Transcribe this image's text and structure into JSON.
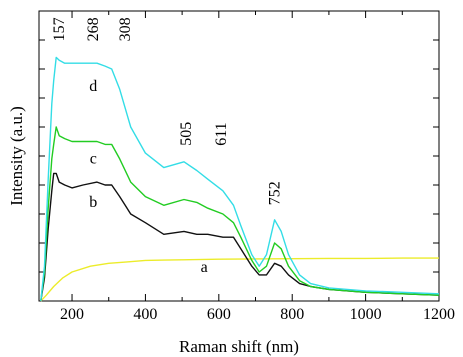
{
  "chart_data": {
    "type": "line",
    "title": "",
    "xlabel": "Raman shift (nm)",
    "ylabel": "Intensity (a.u.)",
    "xlim": [
      110,
      1200
    ],
    "ylim": [
      0,
      1.0
    ],
    "y_tick_labels_shown": false,
    "x_ticks": [
      200,
      400,
      600,
      800,
      1000,
      1200
    ],
    "x_minor_ticks": [
      300,
      500,
      700,
      900,
      1100
    ],
    "y_ticks": [
      0.1,
      0.2,
      0.3,
      0.4,
      0.5,
      0.6,
      0.7,
      0.8,
      0.9
    ],
    "grid": false,
    "legend": "none",
    "series": [
      {
        "name": "a",
        "color": "#ecec2a",
        "x": [
          115,
          130,
          150,
          175,
          200,
          250,
          300,
          350,
          400,
          450,
          500,
          600,
          700,
          800,
          900,
          1000,
          1100,
          1200
        ],
        "y": [
          0.0,
          0.02,
          0.05,
          0.08,
          0.1,
          0.12,
          0.13,
          0.135,
          0.14,
          0.141,
          0.142,
          0.144,
          0.145,
          0.146,
          0.147,
          0.147,
          0.148,
          0.148
        ]
      },
      {
        "name": "b",
        "color": "#111111",
        "x": [
          115,
          125,
          135,
          145,
          150,
          157,
          165,
          180,
          200,
          230,
          268,
          290,
          308,
          330,
          360,
          400,
          450,
          505,
          540,
          570,
          611,
          640,
          660,
          690,
          710,
          730,
          752,
          770,
          790,
          820,
          850,
          900,
          1000,
          1100,
          1200
        ],
        "y": [
          0.0,
          0.08,
          0.25,
          0.38,
          0.44,
          0.44,
          0.41,
          0.4,
          0.39,
          0.4,
          0.41,
          0.4,
          0.4,
          0.36,
          0.3,
          0.27,
          0.23,
          0.24,
          0.23,
          0.23,
          0.22,
          0.22,
          0.18,
          0.12,
          0.09,
          0.09,
          0.13,
          0.12,
          0.09,
          0.06,
          0.05,
          0.04,
          0.03,
          0.025,
          0.02
        ]
      },
      {
        "name": "c",
        "color": "#22cc22",
        "x": [
          115,
          125,
          135,
          145,
          150,
          157,
          165,
          180,
          200,
          230,
          268,
          290,
          308,
          330,
          360,
          400,
          450,
          505,
          540,
          570,
          611,
          640,
          660,
          690,
          710,
          730,
          752,
          770,
          790,
          820,
          850,
          900,
          1000,
          1100,
          1200
        ],
        "y": [
          0.0,
          0.1,
          0.32,
          0.49,
          0.54,
          0.6,
          0.57,
          0.56,
          0.55,
          0.55,
          0.55,
          0.54,
          0.54,
          0.49,
          0.41,
          0.36,
          0.33,
          0.35,
          0.34,
          0.32,
          0.3,
          0.27,
          0.22,
          0.14,
          0.1,
          0.12,
          0.2,
          0.18,
          0.12,
          0.07,
          0.05,
          0.04,
          0.03,
          0.025,
          0.02
        ]
      },
      {
        "name": "d",
        "color": "#33dde6",
        "x": [
          115,
          125,
          135,
          145,
          150,
          157,
          165,
          180,
          200,
          230,
          268,
          290,
          308,
          330,
          360,
          400,
          450,
          505,
          540,
          570,
          611,
          640,
          660,
          690,
          710,
          730,
          752,
          770,
          790,
          820,
          850,
          900,
          1000,
          1100,
          1200
        ],
        "y": [
          0.0,
          0.12,
          0.42,
          0.68,
          0.76,
          0.84,
          0.83,
          0.82,
          0.82,
          0.82,
          0.82,
          0.81,
          0.8,
          0.73,
          0.6,
          0.51,
          0.46,
          0.48,
          0.45,
          0.42,
          0.38,
          0.33,
          0.26,
          0.16,
          0.12,
          0.16,
          0.28,
          0.24,
          0.16,
          0.09,
          0.06,
          0.045,
          0.035,
          0.03,
          0.025
        ]
      }
    ],
    "curve_labels": [
      {
        "text": "a",
        "x": 560,
        "y": 0.1
      },
      {
        "text": "b",
        "x": 258,
        "y": 0.325
      },
      {
        "text": "c",
        "x": 258,
        "y": 0.475
      },
      {
        "text": "d",
        "x": 258,
        "y": 0.725
      }
    ],
    "peak_labels": [
      {
        "text": "157",
        "x": 165,
        "y": 0.895
      },
      {
        "text": "268",
        "x": 257,
        "y": 0.895
      },
      {
        "text": "308",
        "x": 345,
        "y": 0.895
      },
      {
        "text": "505",
        "x": 510,
        "y": 0.535
      },
      {
        "text": "611",
        "x": 606,
        "y": 0.535
      },
      {
        "text": "752",
        "x": 752,
        "y": 0.33
      }
    ]
  }
}
